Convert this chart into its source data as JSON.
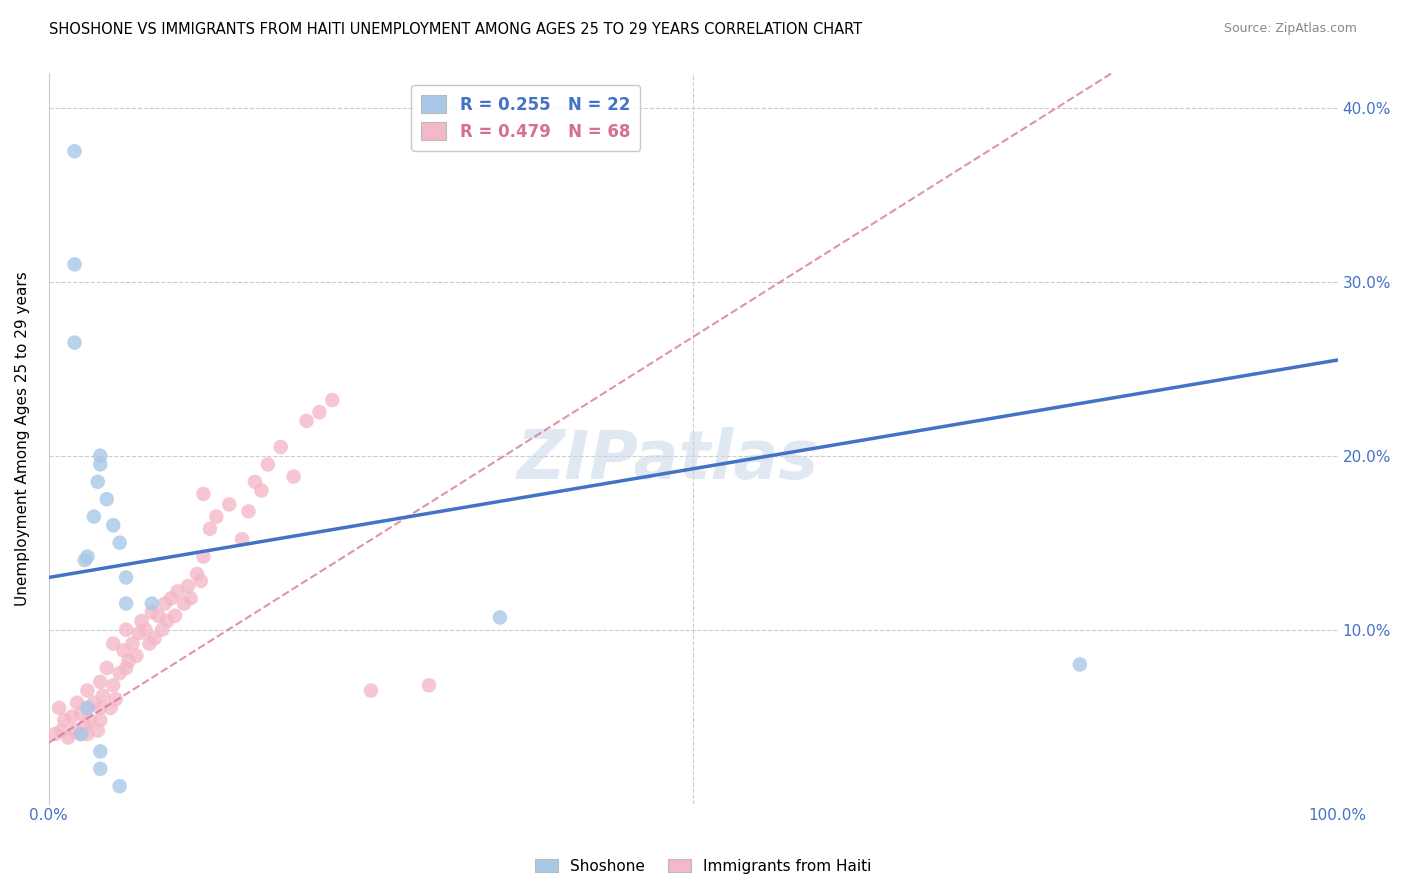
{
  "title": "SHOSHONE VS IMMIGRANTS FROM HAITI UNEMPLOYMENT AMONG AGES 25 TO 29 YEARS CORRELATION CHART",
  "source": "Source: ZipAtlas.com",
  "ylabel": "Unemployment Among Ages 25 to 29 years",
  "xlim": [
    0.0,
    1.0
  ],
  "ylim": [
    0.0,
    0.42
  ],
  "xticks": [
    0.0,
    0.1,
    0.2,
    0.3,
    0.4,
    0.5,
    0.6,
    0.7,
    0.8,
    0.9,
    1.0
  ],
  "xticklabels": [
    "0.0%",
    "",
    "",
    "",
    "",
    "",
    "",
    "",
    "",
    "",
    "100.0%"
  ],
  "yticks": [
    0.0,
    0.1,
    0.2,
    0.3,
    0.4
  ],
  "yticklabels": [
    "",
    "10.0%",
    "20.0%",
    "30.0%",
    "40.0%"
  ],
  "legend1_label": "R = 0.255   N = 22",
  "legend2_label": "R = 0.479   N = 68",
  "legend1_color": "#a8c8e8",
  "legend2_color": "#f4b8c8",
  "line1_color": "#4472c4",
  "line2_color": "#d47090",
  "watermark": "ZIPatlas",
  "watermark_color": "#c8d8e8",
  "blue_line_x0": 0.0,
  "blue_line_y0": 0.13,
  "blue_line_x1": 1.0,
  "blue_line_y1": 0.255,
  "pink_line_x0": 0.0,
  "pink_line_y0": 0.035,
  "pink_line_x1": 0.3,
  "pink_line_y1": 0.175,
  "shoshone_points": [
    [
      0.02,
      0.375
    ],
    [
      0.02,
      0.31
    ],
    [
      0.02,
      0.265
    ],
    [
      0.04,
      0.2
    ],
    [
      0.04,
      0.195
    ],
    [
      0.038,
      0.185
    ],
    [
      0.045,
      0.175
    ],
    [
      0.035,
      0.165
    ],
    [
      0.05,
      0.16
    ],
    [
      0.055,
      0.15
    ],
    [
      0.028,
      0.14
    ],
    [
      0.06,
      0.13
    ],
    [
      0.06,
      0.115
    ],
    [
      0.08,
      0.115
    ],
    [
      0.03,
      0.055
    ],
    [
      0.03,
      0.142
    ],
    [
      0.025,
      0.04
    ],
    [
      0.04,
      0.03
    ],
    [
      0.04,
      0.02
    ],
    [
      0.055,
      0.01
    ],
    [
      0.35,
      0.107
    ],
    [
      0.8,
      0.08
    ]
  ],
  "haiti_points": [
    [
      0.005,
      0.04
    ],
    [
      0.008,
      0.055
    ],
    [
      0.01,
      0.042
    ],
    [
      0.012,
      0.048
    ],
    [
      0.015,
      0.038
    ],
    [
      0.018,
      0.05
    ],
    [
      0.02,
      0.042
    ],
    [
      0.022,
      0.058
    ],
    [
      0.025,
      0.04
    ],
    [
      0.025,
      0.052
    ],
    [
      0.028,
      0.045
    ],
    [
      0.03,
      0.04
    ],
    [
      0.03,
      0.055
    ],
    [
      0.03,
      0.065
    ],
    [
      0.032,
      0.048
    ],
    [
      0.035,
      0.058
    ],
    [
      0.038,
      0.042
    ],
    [
      0.04,
      0.055
    ],
    [
      0.04,
      0.07
    ],
    [
      0.04,
      0.048
    ],
    [
      0.042,
      0.062
    ],
    [
      0.045,
      0.078
    ],
    [
      0.048,
      0.055
    ],
    [
      0.05,
      0.068
    ],
    [
      0.05,
      0.092
    ],
    [
      0.052,
      0.06
    ],
    [
      0.055,
      0.075
    ],
    [
      0.058,
      0.088
    ],
    [
      0.06,
      0.078
    ],
    [
      0.06,
      0.1
    ],
    [
      0.062,
      0.082
    ],
    [
      0.065,
      0.092
    ],
    [
      0.068,
      0.085
    ],
    [
      0.07,
      0.098
    ],
    [
      0.072,
      0.105
    ],
    [
      0.075,
      0.1
    ],
    [
      0.078,
      0.092
    ],
    [
      0.08,
      0.11
    ],
    [
      0.082,
      0.095
    ],
    [
      0.085,
      0.108
    ],
    [
      0.088,
      0.1
    ],
    [
      0.09,
      0.115
    ],
    [
      0.092,
      0.105
    ],
    [
      0.095,
      0.118
    ],
    [
      0.098,
      0.108
    ],
    [
      0.1,
      0.122
    ],
    [
      0.105,
      0.115
    ],
    [
      0.108,
      0.125
    ],
    [
      0.11,
      0.118
    ],
    [
      0.115,
      0.132
    ],
    [
      0.118,
      0.128
    ],
    [
      0.12,
      0.142
    ],
    [
      0.12,
      0.178
    ],
    [
      0.125,
      0.158
    ],
    [
      0.13,
      0.165
    ],
    [
      0.14,
      0.172
    ],
    [
      0.15,
      0.152
    ],
    [
      0.155,
      0.168
    ],
    [
      0.16,
      0.185
    ],
    [
      0.165,
      0.18
    ],
    [
      0.17,
      0.195
    ],
    [
      0.18,
      0.205
    ],
    [
      0.19,
      0.188
    ],
    [
      0.2,
      0.22
    ],
    [
      0.21,
      0.225
    ],
    [
      0.22,
      0.232
    ],
    [
      0.25,
      0.065
    ],
    [
      0.295,
      0.068
    ]
  ]
}
